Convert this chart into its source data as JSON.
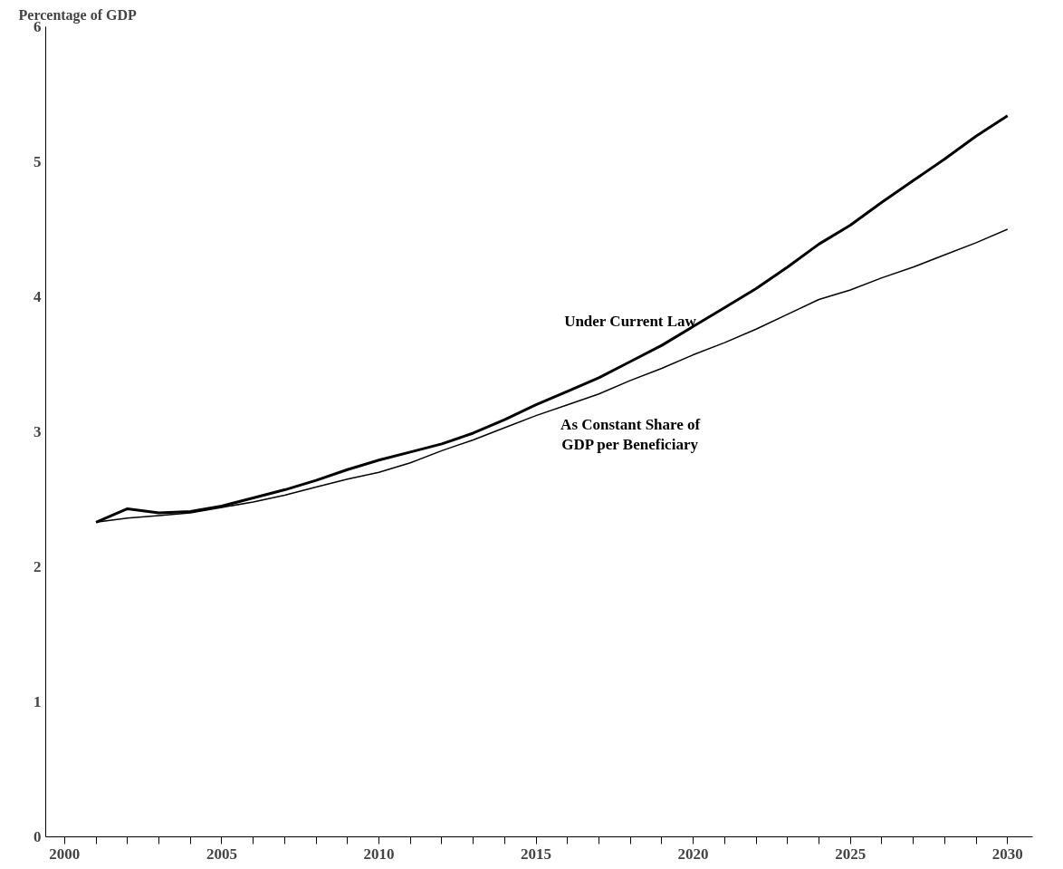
{
  "chart_data": {
    "type": "line",
    "ylabel": "Percentage of GDP",
    "x": [
      2001,
      2002,
      2003,
      2004,
      2005,
      2006,
      2007,
      2008,
      2009,
      2010,
      2011,
      2012,
      2013,
      2014,
      2015,
      2016,
      2017,
      2018,
      2019,
      2020,
      2021,
      2022,
      2023,
      2024,
      2025,
      2026,
      2027,
      2028,
      2029,
      2030
    ],
    "series": [
      {
        "name": "Under Current Law",
        "color": "#000000",
        "values": [
          2.33,
          2.43,
          2.4,
          2.41,
          2.45,
          2.51,
          2.57,
          2.64,
          2.72,
          2.79,
          2.85,
          2.91,
          2.99,
          3.09,
          3.2,
          3.3,
          3.4,
          3.52,
          3.64,
          3.78,
          3.92,
          4.06,
          4.22,
          4.39,
          4.53,
          4.7,
          4.86,
          5.02,
          5.19,
          5.34
        ]
      },
      {
        "name": "As Constant Share of GDP per Beneficiary",
        "color": "#000000",
        "values": [
          2.33,
          2.36,
          2.38,
          2.4,
          2.44,
          2.48,
          2.53,
          2.59,
          2.65,
          2.7,
          2.77,
          2.86,
          2.94,
          3.03,
          3.12,
          3.2,
          3.28,
          3.38,
          3.47,
          3.57,
          3.66,
          3.76,
          3.87,
          3.98,
          4.05,
          4.14,
          4.22,
          4.31,
          4.4,
          4.5
        ]
      }
    ],
    "xlim": [
      1999.4,
      2030.8
    ],
    "ylim": [
      0,
      6
    ],
    "xticks": [
      2000,
      {
        "value": 2001,
        "label": null
      },
      {
        "value": 2002,
        "label": null
      },
      {
        "value": 2003,
        "label": null
      },
      {
        "value": 2004,
        "label": null
      },
      2005,
      {
        "value": 2006,
        "label": null
      },
      {
        "value": 2007,
        "label": null
      },
      {
        "value": 2008,
        "label": null
      },
      {
        "value": 2009,
        "label": null
      },
      2010,
      {
        "value": 2011,
        "label": null
      },
      {
        "value": 2012,
        "label": null
      },
      {
        "value": 2013,
        "label": null
      },
      {
        "value": 2014,
        "label": null
      },
      2015,
      {
        "value": 2016,
        "label": null
      },
      {
        "value": 2017,
        "label": null
      },
      {
        "value": 2018,
        "label": null
      },
      {
        "value": 2019,
        "label": null
      },
      2020,
      {
        "value": 2021,
        "label": null
      },
      {
        "value": 2022,
        "label": null
      },
      {
        "value": 2023,
        "label": null
      },
      {
        "value": 2024,
        "label": null
      },
      2025,
      {
        "value": 2026,
        "label": null
      },
      {
        "value": 2027,
        "label": null
      },
      {
        "value": 2028,
        "label": null
      },
      {
        "value": 2029,
        "label": null
      },
      2030
    ],
    "yticks": [
      0,
      1,
      2,
      3,
      4,
      5,
      6
    ],
    "grid": false,
    "marker": "none",
    "line_style": "solid"
  }
}
